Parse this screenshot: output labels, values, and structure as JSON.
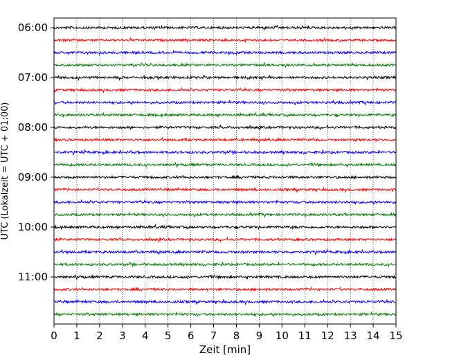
{
  "chart_data": {
    "type": "line",
    "xlabel": "Zeit  [min]",
    "ylabel": "UTC (Lokalzeit = UTC + 01:00)",
    "xlim": [
      0,
      15
    ],
    "x_ticks": [
      0,
      1,
      2,
      3,
      4,
      5,
      6,
      7,
      8,
      9,
      10,
      11,
      12,
      13,
      14,
      15
    ],
    "y_tick_labels": [
      "06:00",
      "07:00",
      "08:00",
      "09:00",
      "10:00",
      "11:00"
    ],
    "traces_per_hour": 4,
    "trace_start_times": [
      "06:00",
      "06:15",
      "06:30",
      "06:45",
      "07:00",
      "07:15",
      "07:30",
      "07:45",
      "08:00",
      "08:15",
      "08:30",
      "08:45",
      "09:00",
      "09:15",
      "09:30",
      "09:45",
      "10:00",
      "10:15",
      "10:30",
      "10:45",
      "11:00",
      "11:15",
      "11:30",
      "11:45"
    ],
    "trace_colors": [
      "#000000",
      "#ff0000",
      "#0000ff",
      "#008000"
    ],
    "grid": {
      "x": true,
      "y": false,
      "style": "dotted"
    },
    "series_note": "seismogram traces, each spanning 15 min"
  }
}
